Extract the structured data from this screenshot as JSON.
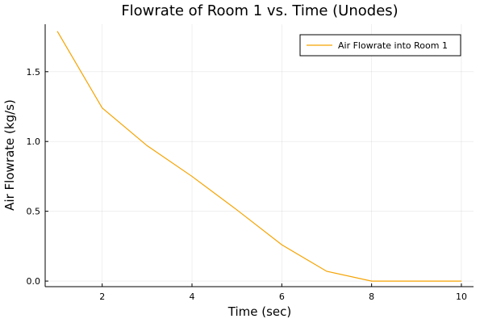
{
  "chart_data": {
    "type": "line",
    "title": "Flowrate of Room 1 vs. Time (Unodes)",
    "xlabel": "Time (sec)",
    "ylabel": "Air Flowrate (kg/s)",
    "xlim": [
      0.73,
      10.27
    ],
    "ylim": [
      -0.04,
      1.84
    ],
    "xticks": [
      2,
      4,
      6,
      8,
      10
    ],
    "xtick_labels": [
      "2",
      "4",
      "6",
      "8",
      "10"
    ],
    "yticks": [
      0.0,
      0.5,
      1.0,
      1.5
    ],
    "ytick_labels": [
      "0.0",
      "0.5",
      "1.0",
      "1.5"
    ],
    "grid": true,
    "legend_position": "top-right",
    "series": [
      {
        "name": "Air Flowrate into Room 1",
        "color": "#f5a300",
        "x": [
          1,
          2,
          3,
          4,
          5,
          6,
          7,
          8,
          9,
          10
        ],
        "y": [
          1.79,
          1.24,
          0.97,
          0.75,
          0.51,
          0.26,
          0.07,
          0.0,
          0.0,
          0.0
        ]
      }
    ]
  }
}
